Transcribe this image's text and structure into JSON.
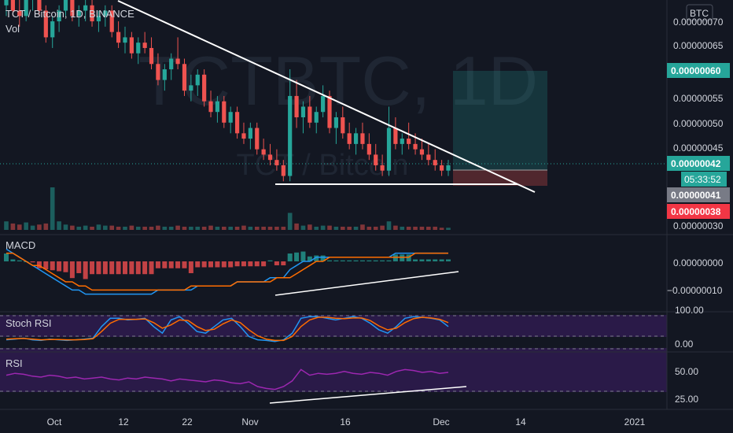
{
  "header": {
    "symbol": "TCT / Bitcoin, 1D, BINANCE",
    "volume_label": "Vol"
  },
  "watermark": {
    "main": "TCTBTC, 1D",
    "sub": "TCT / Bitcoin"
  },
  "currency_badge": "BTC",
  "price_axis": {
    "ticks": [
      "0.00000070",
      "0.00000065",
      "0.00000055",
      "0.00000050",
      "0.00000045",
      "0.00000030"
    ],
    "tags": [
      {
        "text": "0.00000060",
        "color": "#26a69a"
      },
      {
        "text": "0.00000042",
        "color": "#26a69a"
      },
      {
        "text": "05:33:52",
        "color": "#26a69a"
      },
      {
        "text": "0.00000041",
        "color": "#787b86"
      },
      {
        "text": "0.00000038",
        "color": "#f23645"
      }
    ]
  },
  "time_axis": {
    "ticks": [
      "Oct",
      "12",
      "22",
      "Nov",
      "16",
      "Dec",
      "14",
      "2021"
    ]
  },
  "panes": {
    "macd": {
      "title": "MACD",
      "ticks": [
        "0.00000000",
        "−0.00000010"
      ]
    },
    "stoch": {
      "title": "Stoch RSI",
      "ticks": [
        "100.00",
        "0.00"
      ]
    },
    "rsi": {
      "title": "RSI",
      "ticks": [
        "50.00",
        "25.00"
      ]
    }
  },
  "colors": {
    "up": "#26a69a",
    "down": "#ef5350",
    "macd_line": "#2196f3",
    "signal_line": "#ff6d00",
    "stoch_k": "#2196f3",
    "stoch_d": "#ff6d00",
    "rsi_line": "#9c27b0",
    "band_fill": "#2a1a48",
    "trendline": "#ffffff"
  },
  "chart_data": {
    "type": "candlestick",
    "y_range": [
      2.9e-07,
      7.3e-07
    ],
    "candles": [
      [
        72,
        75,
        70,
        73
      ],
      [
        73,
        74,
        70,
        71
      ],
      [
        71,
        73,
        68,
        70
      ],
      [
        70,
        74,
        69,
        73
      ],
      [
        73,
        76,
        71,
        74
      ],
      [
        74,
        75,
        70,
        71
      ],
      [
        71,
        72,
        65,
        66
      ],
      [
        66,
        70,
        64,
        69
      ],
      [
        69,
        72,
        67,
        71
      ],
      [
        71,
        74,
        70,
        73
      ],
      [
        73,
        74,
        69,
        70
      ],
      [
        70,
        72,
        68,
        71
      ],
      [
        71,
        73,
        69,
        72
      ],
      [
        72,
        73,
        68,
        69
      ],
      [
        69,
        71,
        67,
        70
      ],
      [
        70,
        72,
        68,
        71
      ],
      [
        71,
        72,
        66,
        67
      ],
      [
        67,
        69,
        64,
        65
      ],
      [
        65,
        68,
        63,
        66
      ],
      [
        66,
        67,
        62,
        63
      ],
      [
        63,
        66,
        61,
        65
      ],
      [
        65,
        67,
        63,
        64
      ],
      [
        64,
        66,
        60,
        61
      ],
      [
        61,
        63,
        57,
        58
      ],
      [
        58,
        61,
        56,
        60
      ],
      [
        60,
        63,
        58,
        62
      ],
      [
        62,
        66,
        60,
        61
      ],
      [
        61,
        62,
        55,
        56
      ],
      [
        56,
        59,
        54,
        57
      ],
      [
        57,
        60,
        55,
        59
      ],
      [
        59,
        60,
        53,
        54
      ],
      [
        54,
        56,
        51,
        52
      ],
      [
        52,
        55,
        50,
        54
      ],
      [
        54,
        55,
        49,
        50
      ],
      [
        50,
        53,
        48,
        52
      ],
      [
        52,
        53,
        47,
        48
      ],
      [
        48,
        50,
        46,
        47
      ],
      [
        47,
        50,
        45,
        49
      ],
      [
        49,
        50,
        44,
        45
      ],
      [
        45,
        47,
        43,
        44
      ],
      [
        44,
        46,
        42,
        43
      ],
      [
        43,
        45,
        41,
        42
      ],
      [
        42,
        43,
        39,
        40
      ],
      [
        40,
        60,
        39,
        55
      ],
      [
        55,
        58,
        49,
        51
      ],
      [
        51,
        54,
        48,
        53
      ],
      [
        53,
        55,
        49,
        50
      ],
      [
        50,
        53,
        48,
        52
      ],
      [
        52,
        57,
        51,
        55
      ],
      [
        55,
        56,
        48,
        49
      ],
      [
        49,
        52,
        46,
        51
      ],
      [
        51,
        53,
        47,
        48
      ],
      [
        48,
        50,
        45,
        46
      ],
      [
        46,
        49,
        44,
        48
      ],
      [
        48,
        50,
        45,
        46
      ],
      [
        46,
        48,
        43,
        44
      ],
      [
        44,
        46,
        41,
        42
      ],
      [
        42,
        44,
        40,
        41
      ],
      [
        41,
        53,
        40,
        49
      ],
      [
        49,
        51,
        45,
        46
      ],
      [
        46,
        48,
        44,
        47
      ],
      [
        47,
        50,
        45,
        46
      ],
      [
        46,
        48,
        44,
        45
      ],
      [
        45,
        47,
        43,
        44
      ],
      [
        44,
        46,
        42,
        43
      ],
      [
        43,
        45,
        41,
        42
      ],
      [
        42,
        43,
        40,
        41
      ],
      [
        41,
        43,
        40,
        42
      ]
    ],
    "volume": [
      8,
      6,
      5,
      7,
      4,
      5,
      6,
      40,
      8,
      5,
      4,
      3,
      4,
      3,
      5,
      4,
      4,
      3,
      3,
      4,
      3,
      3,
      3,
      4,
      3,
      3,
      4,
      3,
      3,
      3,
      3,
      4,
      3,
      3,
      3,
      3,
      4,
      3,
      3,
      3,
      3,
      3,
      3,
      16,
      6,
      4,
      5,
      3,
      4,
      4,
      3,
      3,
      3,
      3,
      5,
      3,
      3,
      4,
      8,
      4,
      3,
      3,
      3,
      3,
      3,
      3,
      2,
      2
    ],
    "macd": {
      "values": [
        3,
        2,
        1,
        0,
        -1,
        -2,
        -3,
        -4,
        -5,
        -6,
        -7,
        -7,
        -8,
        -8,
        -8,
        -8,
        -8,
        -8,
        -8,
        -8,
        -8,
        -8,
        -8,
        -7,
        -7,
        -7,
        -7,
        -7,
        -7,
        -6,
        -6,
        -6,
        -6,
        -6,
        -6,
        -5,
        -5,
        -5,
        -5,
        -5,
        -4,
        -4,
        -4,
        -2,
        -1,
        0,
        0,
        1,
        1,
        1,
        1,
        1,
        1,
        1,
        1,
        1,
        1,
        1,
        1,
        2,
        2,
        2,
        2,
        2,
        2,
        2,
        2,
        2
      ],
      "signal": [
        2,
        2,
        1,
        0,
        -1,
        -1,
        -2,
        -3,
        -4,
        -5,
        -5,
        -6,
        -6,
        -7,
        -7,
        -7,
        -7,
        -7,
        -7,
        -7,
        -7,
        -7,
        -7,
        -7,
        -7,
        -7,
        -7,
        -7,
        -6,
        -6,
        -6,
        -6,
        -6,
        -6,
        -6,
        -5,
        -5,
        -5,
        -5,
        -5,
        -5,
        -4,
        -4,
        -4,
        -3,
        -2,
        -1,
        0,
        0,
        1,
        1,
        1,
        1,
        1,
        1,
        1,
        1,
        1,
        1,
        1,
        1,
        1,
        2,
        2,
        2,
        2,
        2,
        2
      ]
    },
    "stoch_rsi": {
      "k": [
        20,
        22,
        25,
        20,
        18,
        22,
        20,
        18,
        20,
        22,
        25,
        60,
        85,
        85,
        80,
        82,
        85,
        60,
        40,
        80,
        90,
        70,
        45,
        40,
        60,
        80,
        85,
        60,
        30,
        20,
        18,
        15,
        20,
        40,
        85,
        90,
        90,
        85,
        80,
        85,
        90,
        85,
        70,
        50,
        40,
        60,
        85,
        90,
        88,
        85,
        80,
        60
      ],
      "d": [
        22,
        23,
        24,
        22,
        20,
        21,
        21,
        20,
        20,
        21,
        23,
        45,
        70,
        82,
        82,
        82,
        83,
        72,
        55,
        65,
        80,
        78,
        60,
        48,
        52,
        68,
        80,
        72,
        50,
        32,
        22,
        18,
        18,
        30,
        60,
        80,
        88,
        88,
        85,
        84,
        86,
        86,
        78,
        62,
        50,
        55,
        72,
        84,
        88,
        86,
        82,
        72
      ]
    },
    "rsi": [
      42,
      44,
      43,
      41,
      40,
      42,
      41,
      39,
      40,
      38,
      39,
      40,
      38,
      37,
      39,
      38,
      40,
      39,
      38,
      36,
      38,
      37,
      36,
      35,
      37,
      36,
      34,
      33,
      35,
      30,
      28,
      27,
      30,
      36,
      48,
      42,
      44,
      43,
      44,
      46,
      44,
      43,
      45,
      44,
      42,
      46,
      48,
      47,
      45,
      46,
      44,
      45
    ]
  }
}
